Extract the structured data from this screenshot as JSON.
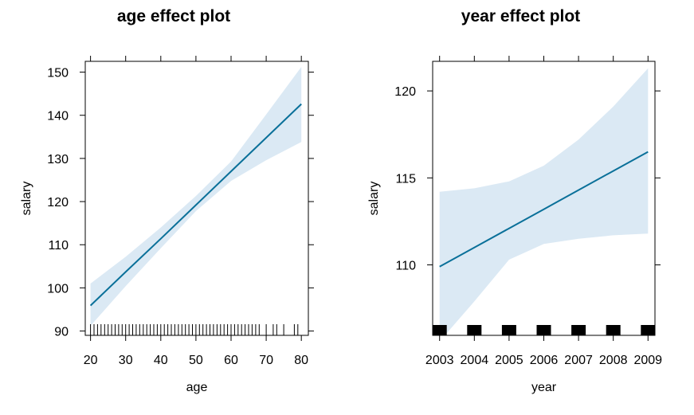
{
  "chart_data": [
    {
      "type": "line",
      "title": "age effect plot",
      "xlabel": "age",
      "ylabel": "salary",
      "xlim": [
        18.5,
        82
      ],
      "ylim": [
        89,
        152.5
      ],
      "x_ticks": [
        20,
        30,
        40,
        50,
        60,
        70,
        80
      ],
      "x_tick_labels": [
        "20",
        "30",
        "40",
        "50",
        "60",
        "70",
        "80"
      ],
      "y_ticks": [
        90,
        100,
        110,
        120,
        130,
        140,
        150
      ],
      "y_tick_labels": [
        "90",
        "100",
        "110",
        "120",
        "130",
        "140",
        "150"
      ],
      "x": [
        20,
        30,
        40,
        50,
        60,
        70,
        80
      ],
      "y": [
        95.9,
        103.7,
        111.4,
        119.2,
        127.0,
        134.8,
        142.6
      ],
      "lower": [
        91.2,
        100.4,
        109.2,
        117.8,
        124.8,
        129.6,
        133.8
      ],
      "upper": [
        101.0,
        107.2,
        114.0,
        121.3,
        129.3,
        140.2,
        151.2
      ],
      "rug": [
        20,
        21,
        22,
        23,
        24,
        25,
        26,
        27,
        28,
        29,
        30,
        31,
        32,
        33,
        34,
        35,
        36,
        37,
        38,
        39,
        40,
        41,
        42,
        43,
        44,
        45,
        46,
        47,
        48,
        49,
        50,
        51,
        52,
        53,
        54,
        55,
        56,
        57,
        58,
        59,
        60,
        61,
        62,
        63,
        64,
        65,
        66,
        67,
        68,
        70,
        72,
        73,
        75,
        78,
        79
      ],
      "rug_style": "lines"
    },
    {
      "type": "line",
      "title": "year effect plot",
      "xlabel": "year",
      "ylabel": "salary",
      "xlim": [
        2002.8,
        2009.2
      ],
      "ylim": [
        105.95,
        121.7
      ],
      "x_ticks": [
        2003,
        2004,
        2005,
        2006,
        2007,
        2008,
        2009
      ],
      "x_tick_labels": [
        "2003",
        "2004",
        "2005",
        "2006",
        "2007",
        "2008",
        "2009"
      ],
      "y_ticks": [
        110,
        115,
        120
      ],
      "y_tick_labels": [
        "110",
        "115",
        "120"
      ],
      "x": [
        2003,
        2004,
        2005,
        2006,
        2007,
        2008,
        2009
      ],
      "y": [
        109.9,
        111.0,
        112.1,
        113.2,
        114.3,
        115.4,
        116.5
      ],
      "lower": [
        105.6,
        107.9,
        110.3,
        111.2,
        111.5,
        111.7,
        111.8
      ],
      "upper": [
        114.2,
        114.4,
        114.8,
        115.7,
        117.2,
        119.1,
        121.3
      ],
      "rug": [
        2003,
        2004,
        2005,
        2006,
        2007,
        2008,
        2009
      ],
      "rug_style": "blocks"
    }
  ]
}
